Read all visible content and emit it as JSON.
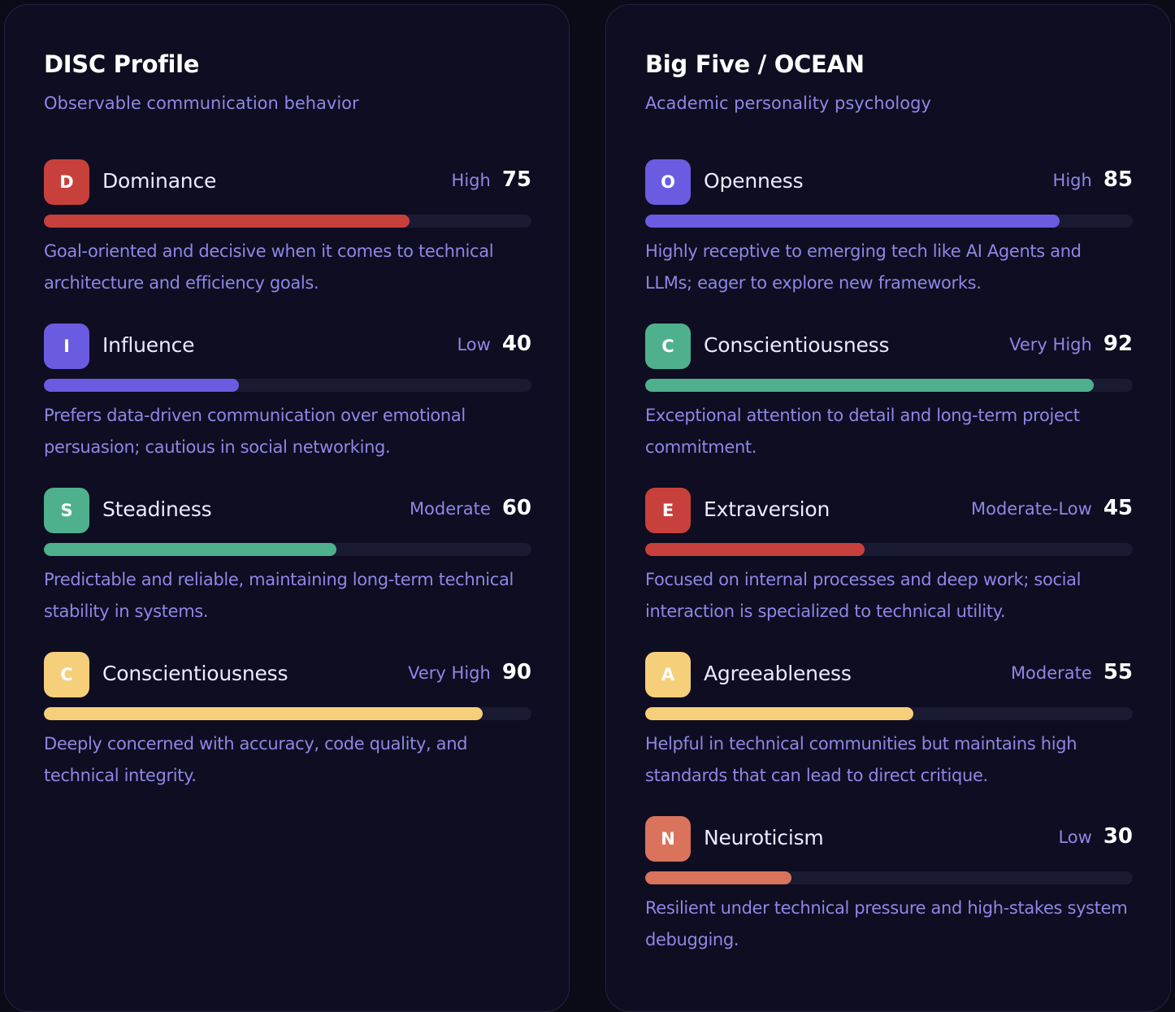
{
  "disc": {
    "title": "DISC Profile",
    "subtitle": "Observable communication behavior",
    "traits": [
      {
        "letter": "D",
        "name": "Dominance",
        "level": "High",
        "score": "75",
        "value": 75,
        "color": "#c8403b",
        "description": "Goal-oriented and decisive when it comes to technical architecture and efficiency goals."
      },
      {
        "letter": "I",
        "name": "Influence",
        "level": "Low",
        "score": "40",
        "value": 40,
        "color": "#6b5be0",
        "description": "Prefers data-driven communication over emotional persuasion; cautious in social networking."
      },
      {
        "letter": "S",
        "name": "Steadiness",
        "level": "Moderate",
        "score": "60",
        "value": 60,
        "color": "#4fb08d",
        "description": "Predictable and reliable, maintaining long-term technical stability in systems."
      },
      {
        "letter": "C",
        "name": "Conscientiousness",
        "level": "Very High",
        "score": "90",
        "value": 90,
        "color": "#f5cf7a",
        "description": "Deeply concerned with accuracy, code quality, and technical integrity."
      }
    ]
  },
  "ocean": {
    "title": "Big Five / OCEAN",
    "subtitle": "Academic personality psychology",
    "traits": [
      {
        "letter": "O",
        "name": "Openness",
        "level": "High",
        "score": "85",
        "value": 85,
        "color": "#6b5be0",
        "description": "Highly receptive to emerging tech like AI Agents and LLMs; eager to explore new frameworks."
      },
      {
        "letter": "C",
        "name": "Conscientiousness",
        "level": "Very High",
        "score": "92",
        "value": 92,
        "color": "#4fb08d",
        "description": "Exceptional attention to detail and long-term project commitment."
      },
      {
        "letter": "E",
        "name": "Extraversion",
        "level": "Moderate-Low",
        "score": "45",
        "value": 45,
        "color": "#c8403b",
        "description": "Focused on internal processes and deep work; social interaction is specialized to technical utility."
      },
      {
        "letter": "A",
        "name": "Agreeableness",
        "level": "Moderate",
        "score": "55",
        "value": 55,
        "color": "#f5cf7a",
        "description": "Helpful in technical communities but maintains high standards that can lead to direct critique."
      },
      {
        "letter": "N",
        "name": "Neuroticism",
        "level": "Low",
        "score": "30",
        "value": 30,
        "color": "#d9735c",
        "description": "Resilient under technical pressure and high-stakes system debugging."
      }
    ]
  }
}
